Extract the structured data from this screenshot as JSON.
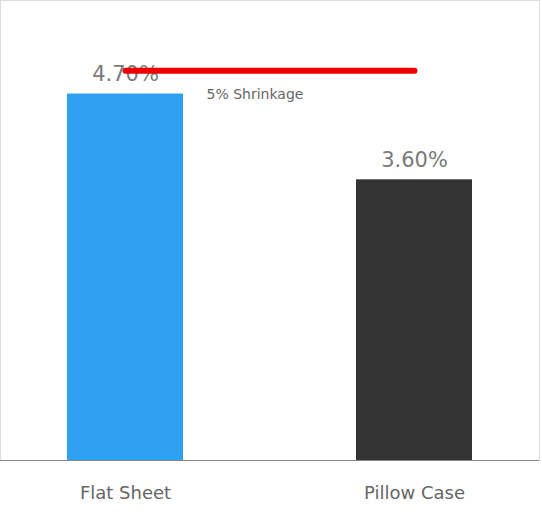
{
  "chart_data": {
    "type": "bar",
    "categories": [
      "Flat Sheet",
      "Pillow Case"
    ],
    "values": [
      4.7,
      3.6
    ],
    "value_labels": [
      "4.70%",
      "3.60%"
    ],
    "colors": [
      "#2ea1f2",
      "#333333"
    ],
    "data_labels": true,
    "tick_labels": "x",
    "grid": false,
    "ylim": [
      0,
      5.9
    ],
    "yticks": [],
    "annotations": [
      {
        "text": "5% Shrinkage",
        "y": 5,
        "x": [
          "Flat Sheet",
          "Pillow Case"
        ],
        "color": "#ee0000"
      }
    ]
  }
}
